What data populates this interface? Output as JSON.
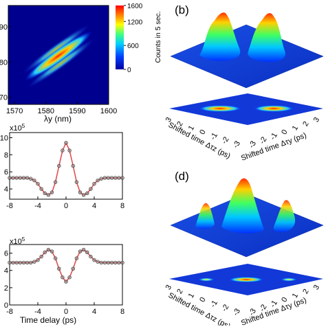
{
  "chart_data": [
    {
      "type": "heatmap",
      "panel": "a",
      "xlabel": "λy (nm)",
      "x_ticks": [
        1570,
        1580,
        1590,
        1600
      ],
      "y_ticks": [
        70,
        80,
        90
      ],
      "xlim": [
        1568,
        1600
      ],
      "ylim": [
        1568,
        1596
      ],
      "colorbar_label": "Counts in 5 sec.",
      "colorbar_ticks": [
        0,
        600,
        1200,
        1600
      ],
      "colorbar_max": 1600
    },
    {
      "type": "surface",
      "panel": "b",
      "label": "(b)",
      "xlabel": "Shifted time Δτz (ps)",
      "ylabel": "Shifted time Δτy (ps)",
      "x_ticks": [
        3,
        2,
        1,
        0,
        -1,
        -2,
        -3
      ],
      "y_ticks": [
        -3,
        -2,
        -1,
        0,
        1,
        2,
        3
      ]
    },
    {
      "type": "scatter",
      "panel": "c-top",
      "multiplier": "x10",
      "multiplier_exp": "5",
      "x_ticks": [
        -8,
        -4,
        0,
        4,
        8
      ],
      "y_ticks": [
        4,
        6,
        8,
        10
      ],
      "xlim": [
        -8,
        8
      ],
      "ylim": [
        2.8,
        10.6
      ],
      "series": [
        {
          "x": [
            -8,
            -7.5,
            -7,
            -6.5,
            -6,
            -5.5,
            -5,
            -4.5,
            -4,
            -3.5,
            -3,
            -2.5,
            -2,
            -1.5,
            -1,
            -0.5,
            0,
            0.5,
            1,
            1.5,
            2,
            2.5,
            3,
            3.5,
            4,
            4.5,
            5,
            5.5,
            6,
            6.5,
            7,
            7.5,
            8
          ],
          "y": [
            5.3,
            5.3,
            5.3,
            5.3,
            5.3,
            5.3,
            5.2,
            5.0,
            4.6,
            4.0,
            3.5,
            3.3,
            3.6,
            4.8,
            6.7,
            8.5,
            9.4,
            8.5,
            6.7,
            4.8,
            3.6,
            3.3,
            3.5,
            4.0,
            4.6,
            5.0,
            5.2,
            5.3,
            5.3,
            5.3,
            5.3,
            5.3,
            5.3
          ]
        }
      ]
    },
    {
      "type": "scatter",
      "panel": "c-bottom",
      "multiplier": "x10",
      "multiplier_exp": "5",
      "xlabel": "Time delay (ps)",
      "x_ticks": [
        -8,
        -4,
        0,
        4,
        8
      ],
      "y_ticks": [
        0,
        2,
        4,
        6
      ],
      "xlim": [
        -8,
        8
      ],
      "ylim": [
        0,
        7
      ],
      "series": [
        {
          "x": [
            -8,
            -7.5,
            -7,
            -6.5,
            -6,
            -5.5,
            -5,
            -4.5,
            -4,
            -3.5,
            -3,
            -2.5,
            -2,
            -1.5,
            -1,
            -0.5,
            0,
            0.5,
            1,
            1.5,
            2,
            2.5,
            3,
            3.5,
            4,
            4.5,
            5,
            5.5,
            6,
            6.5,
            7,
            7.5,
            8
          ],
          "y": [
            4.9,
            4.9,
            4.9,
            4.9,
            4.9,
            4.9,
            4.9,
            5.0,
            5.2,
            5.6,
            6.1,
            6.4,
            6.2,
            5.4,
            4.2,
            3.2,
            2.7,
            3.2,
            4.2,
            5.4,
            6.2,
            6.4,
            6.1,
            5.6,
            5.2,
            5.0,
            4.9,
            4.9,
            4.9,
            4.9,
            4.9,
            4.9,
            4.9
          ]
        }
      ]
    },
    {
      "type": "surface",
      "panel": "d",
      "label": "(d)",
      "xlabel": "Shifted time Δτz (ps)",
      "ylabel": "Shifted time Δτy (ps)",
      "x_ticks": [
        3,
        2,
        1,
        0,
        -1,
        -2,
        -3
      ],
      "y_ticks": [
        -3,
        -2,
        -1,
        0,
        1,
        2,
        3
      ]
    }
  ]
}
